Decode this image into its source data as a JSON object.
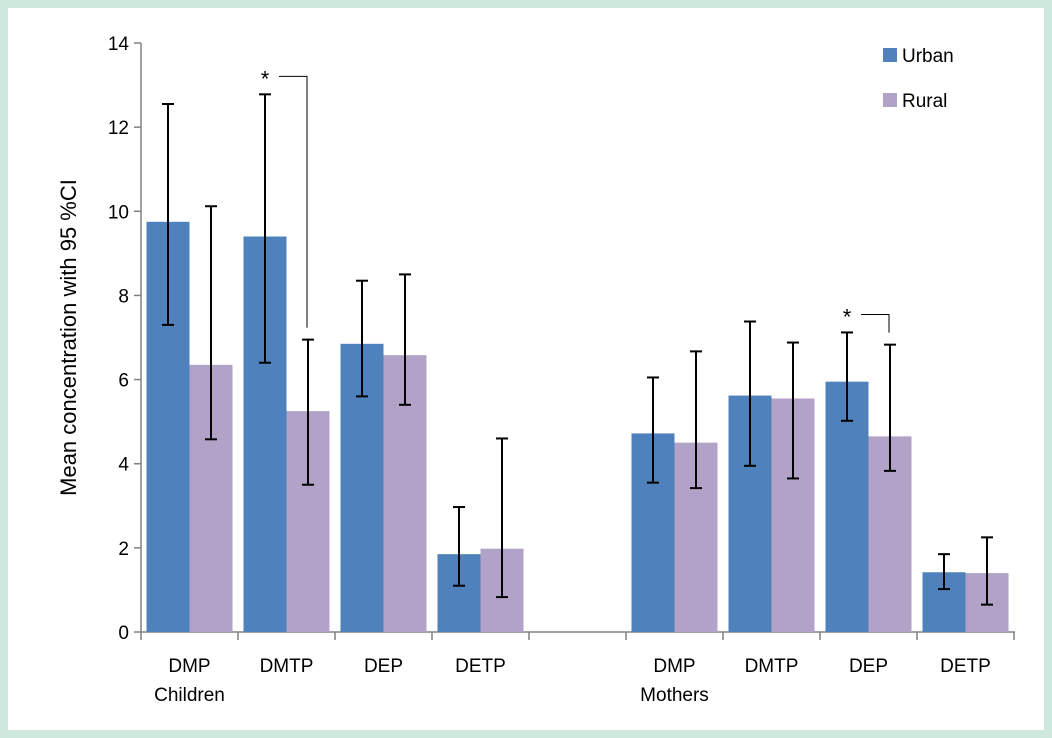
{
  "chart_data": {
    "type": "bar",
    "ylabel": "Mean concentration with 95 %CI",
    "xlabel": "",
    "ylim": [
      0,
      14
    ],
    "yticks": [
      0,
      2,
      4,
      6,
      8,
      10,
      12,
      14
    ],
    "grid": false,
    "legend_position": "top-right",
    "groups": [
      {
        "label": "Children",
        "categories": [
          "DMP",
          "DMTP",
          "DEP",
          "DETP"
        ]
      },
      {
        "label": "Mothers",
        "categories": [
          "DMP",
          "DMTP",
          "DEP",
          "DETP"
        ]
      }
    ],
    "series": [
      {
        "name": "Urban",
        "color": "#4f81bd",
        "values": [
          9.75,
          9.4,
          6.85,
          1.85,
          4.72,
          5.62,
          5.95,
          1.42
        ],
        "ci_low": [
          7.3,
          6.4,
          5.6,
          1.1,
          3.55,
          3.95,
          5.02,
          1.02
        ],
        "ci_high": [
          12.55,
          12.78,
          8.35,
          2.97,
          6.05,
          7.38,
          7.12,
          1.85
        ]
      },
      {
        "name": "Rural",
        "color": "#b3a2c7",
        "values": [
          6.35,
          5.25,
          6.58,
          1.98,
          4.5,
          5.55,
          4.65,
          1.4
        ],
        "ci_low": [
          4.58,
          3.5,
          5.4,
          0.83,
          3.42,
          3.65,
          3.83,
          0.65
        ],
        "ci_high": [
          10.12,
          6.95,
          8.5,
          4.6,
          6.67,
          6.88,
          6.83,
          2.25
        ]
      }
    ],
    "annotations": [
      {
        "text": "*",
        "category_index": 1,
        "note": "significant difference"
      },
      {
        "text": "*",
        "category_index": 6,
        "note": "significant difference"
      }
    ]
  }
}
